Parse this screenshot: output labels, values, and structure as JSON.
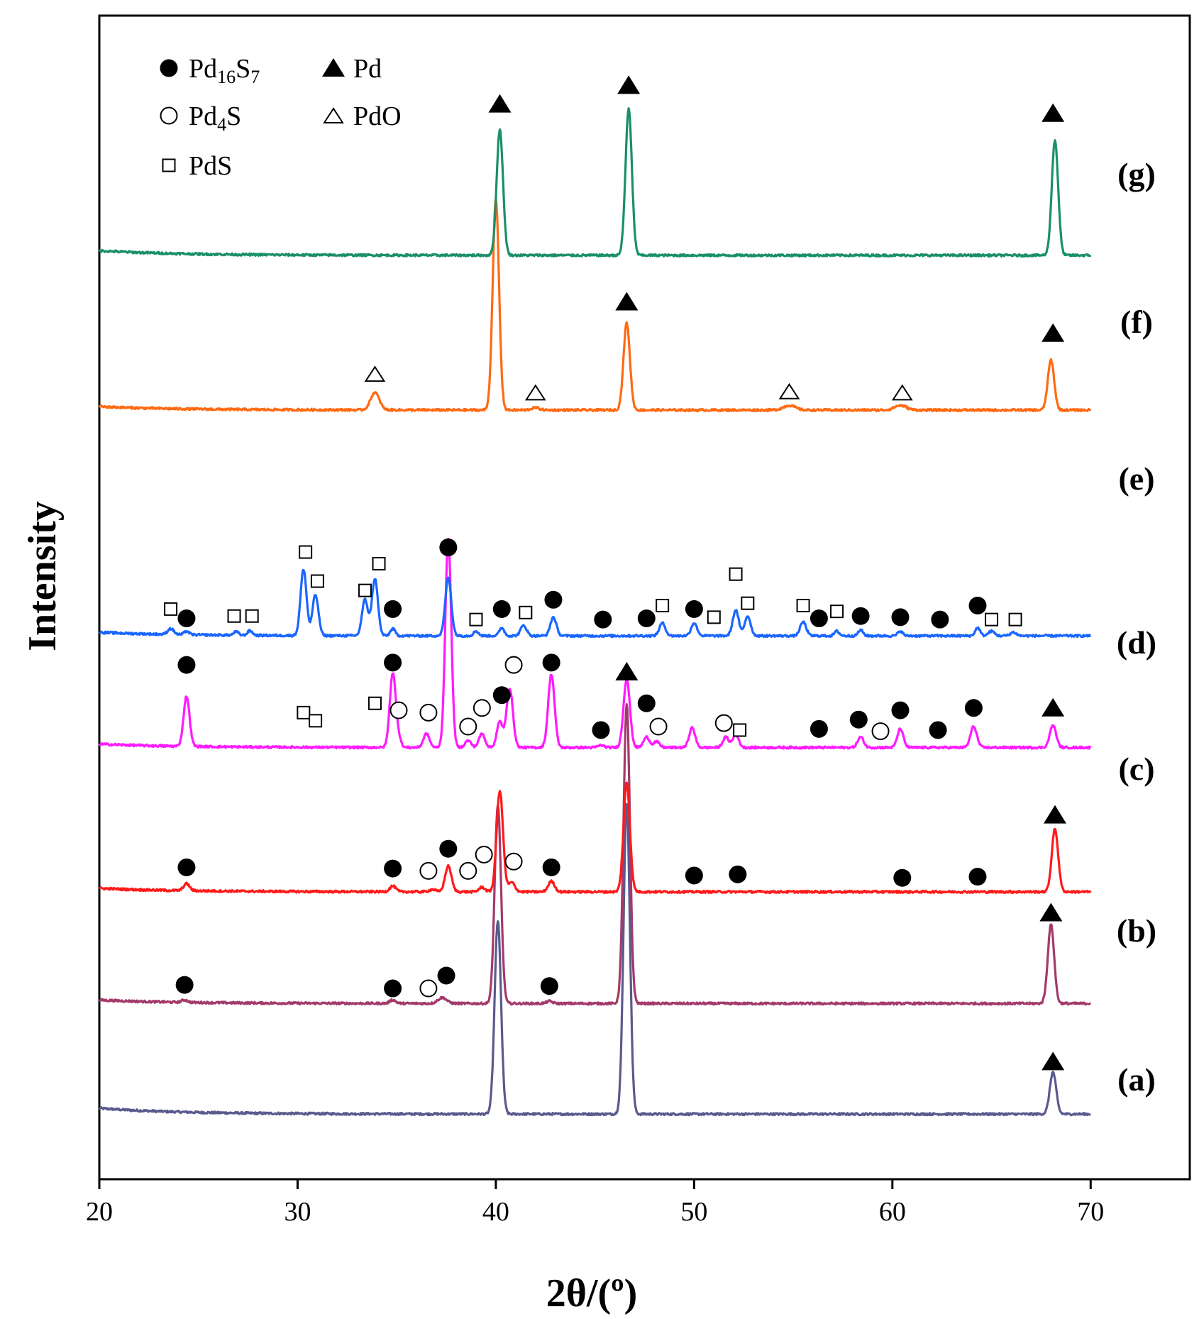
{
  "chart_data": {
    "type": "line",
    "xlabel": "2θ/(º)",
    "ylabel": "Intensity",
    "xlim": [
      20,
      75
    ],
    "xticks": [
      20,
      30,
      40,
      50,
      60,
      70
    ],
    "tick_labels": [
      "20",
      "30",
      "40",
      "50",
      "60",
      "70"
    ],
    "ylim": [
      0,
      100
    ],
    "legend": {
      "placement": "top-left",
      "entries": [
        {
          "symbol": "filled-circle",
          "label": "Pd",
          "sub": "16",
          "label2": "S",
          "sub2": "7",
          "phase": "Pd16S7"
        },
        {
          "symbol": "filled-triangle",
          "label": "Pd",
          "phase": "Pd"
        },
        {
          "symbol": "open-circle",
          "label": "Pd",
          "sub": "4",
          "label2": "S",
          "phase": "Pd4S"
        },
        {
          "symbol": "open-triangle",
          "label": "PdO",
          "phase": "PdO"
        },
        {
          "symbol": "open-square",
          "label": "PdS",
          "phase": "PdS"
        }
      ]
    },
    "series": [
      {
        "name": "(a)",
        "color": "#5a5a8e",
        "baseline": 5.6,
        "start": 6.1,
        "peaks": [
          [
            40.1,
            16.6,
            0.16
          ],
          [
            46.6,
            26.7,
            0.16
          ],
          [
            68.1,
            3.6,
            0.16
          ]
        ],
        "markers": [
          {
            "symbol": "filled-triangle",
            "x": 68.1,
            "y": 10.1
          }
        ]
      },
      {
        "name": "(b)",
        "color": "#a33a6b",
        "baseline": 15.1,
        "start": 15.4,
        "peaks": [
          [
            24.3,
            0.2,
            0.15
          ],
          [
            34.8,
            0.3,
            0.15
          ],
          [
            37.3,
            0.5,
            0.22
          ],
          [
            40.1,
            17.0,
            0.16
          ],
          [
            42.7,
            0.2,
            0.15
          ],
          [
            46.6,
            25.7,
            0.16
          ],
          [
            68.0,
            6.8,
            0.16
          ]
        ],
        "markers": [
          {
            "symbol": "filled-circle",
            "x": 24.3,
            "y": 16.7
          },
          {
            "symbol": "filled-circle",
            "x": 34.8,
            "y": 16.4
          },
          {
            "symbol": "open-circle",
            "x": 36.6,
            "y": 16.4
          },
          {
            "symbol": "filled-circle",
            "x": 37.5,
            "y": 17.5
          },
          {
            "symbol": "filled-circle",
            "x": 42.7,
            "y": 16.6
          },
          {
            "symbol": "filled-triangle",
            "x": 68.0,
            "y": 22.9
          }
        ]
      },
      {
        "name": "(c)",
        "color": "#ff1a1a",
        "baseline": 24.7,
        "start": 25.0,
        "peaks": [
          [
            24.4,
            0.6,
            0.15
          ],
          [
            34.8,
            0.5,
            0.15
          ],
          [
            36.8,
            0.2,
            0.15
          ],
          [
            37.6,
            2.2,
            0.16
          ],
          [
            39.3,
            0.4,
            0.15
          ],
          [
            40.2,
            8.7,
            0.16
          ],
          [
            40.8,
            0.8,
            0.16
          ],
          [
            42.8,
            0.9,
            0.16
          ],
          [
            46.6,
            9.4,
            0.16
          ],
          [
            68.2,
            5.4,
            0.16
          ]
        ],
        "markers": [
          {
            "symbol": "filled-circle",
            "x": 24.4,
            "y": 26.8
          },
          {
            "symbol": "filled-circle",
            "x": 34.8,
            "y": 26.7
          },
          {
            "symbol": "open-circle",
            "x": 36.6,
            "y": 26.5
          },
          {
            "symbol": "filled-circle",
            "x": 37.6,
            "y": 28.4
          },
          {
            "symbol": "open-circle",
            "x": 38.6,
            "y": 26.5
          },
          {
            "symbol": "open-circle",
            "x": 39.4,
            "y": 27.9
          },
          {
            "symbol": "open-circle",
            "x": 40.9,
            "y": 27.3
          },
          {
            "symbol": "filled-circle",
            "x": 42.8,
            "y": 26.8
          },
          {
            "symbol": "filled-circle",
            "x": 50.0,
            "y": 26.1
          },
          {
            "symbol": "filled-circle",
            "x": 52.2,
            "y": 26.2
          },
          {
            "symbol": "filled-circle",
            "x": 60.5,
            "y": 25.9
          },
          {
            "symbol": "filled-circle",
            "x": 64.3,
            "y": 26.0
          },
          {
            "symbol": "filled-triangle",
            "x": 68.2,
            "y": 31.3
          }
        ]
      },
      {
        "name": "(d)",
        "color": "#ff1aff",
        "baseline": 37.1,
        "start": 37.4,
        "peaks": [
          [
            24.4,
            4.3,
            0.15
          ],
          [
            34.8,
            6.4,
            0.15
          ],
          [
            35.1,
            0.7,
            0.12
          ],
          [
            36.5,
            1.2,
            0.15
          ],
          [
            37.6,
            18.0,
            0.15
          ],
          [
            38.6,
            0.6,
            0.15
          ],
          [
            39.3,
            1.2,
            0.15
          ],
          [
            40.2,
            2.2,
            0.15
          ],
          [
            40.7,
            5.1,
            0.16
          ],
          [
            42.8,
            6.3,
            0.16
          ],
          [
            45.3,
            0.2,
            0.15
          ],
          [
            46.6,
            5.9,
            0.16
          ],
          [
            47.6,
            0.9,
            0.15
          ],
          [
            48.1,
            0.5,
            0.15
          ],
          [
            49.9,
            1.7,
            0.15
          ],
          [
            51.6,
            0.9,
            0.15
          ],
          [
            52.1,
            1.1,
            0.15
          ],
          [
            58.4,
            0.9,
            0.15
          ],
          [
            60.4,
            1.6,
            0.15
          ],
          [
            64.1,
            1.8,
            0.16
          ],
          [
            68.1,
            1.9,
            0.16
          ]
        ],
        "markers": [
          {
            "symbol": "filled-circle",
            "x": 24.4,
            "y": 44.2
          },
          {
            "symbol": "filled-circle",
            "x": 34.8,
            "y": 44.4
          },
          {
            "symbol": "open-circle",
            "x": 35.1,
            "y": 40.3
          },
          {
            "symbol": "open-circle",
            "x": 36.6,
            "y": 40.1
          },
          {
            "symbol": "open-circle",
            "x": 38.6,
            "y": 38.9
          },
          {
            "symbol": "open-circle",
            "x": 39.3,
            "y": 40.5
          },
          {
            "symbol": "filled-circle",
            "x": 40.3,
            "y": 41.6
          },
          {
            "symbol": "open-circle",
            "x": 40.9,
            "y": 44.2
          },
          {
            "symbol": "filled-circle",
            "x": 42.8,
            "y": 44.4
          },
          {
            "symbol": "filled-circle",
            "x": 45.3,
            "y": 38.6
          },
          {
            "symbol": "filled-triangle",
            "x": 46.6,
            "y": 43.6
          },
          {
            "symbol": "filled-circle",
            "x": 47.6,
            "y": 40.9
          },
          {
            "symbol": "open-circle",
            "x": 48.2,
            "y": 38.9
          },
          {
            "symbol": "open-circle",
            "x": 51.5,
            "y": 39.2
          },
          {
            "symbol": "filled-circle",
            "x": 56.3,
            "y": 38.7
          },
          {
            "symbol": "filled-circle",
            "x": 58.3,
            "y": 39.5
          },
          {
            "symbol": "open-circle",
            "x": 59.4,
            "y": 38.5
          },
          {
            "symbol": "filled-circle",
            "x": 60.4,
            "y": 40.3
          },
          {
            "symbol": "filled-circle",
            "x": 62.3,
            "y": 38.6
          },
          {
            "symbol": "filled-circle",
            "x": 64.1,
            "y": 40.5
          },
          {
            "symbol": "filled-triangle",
            "x": 68.1,
            "y": 40.5
          }
        ],
        "pds_markers": [
          30.3,
          30.9,
          33.9,
          52.3
        ]
      },
      {
        "name": "(e)",
        "color": "#1a66ff",
        "baseline": 46.7,
        "start": 47.0,
        "peaks": [
          [
            23.6,
            0.5,
            0.15
          ],
          [
            24.4,
            0.3,
            0.12
          ],
          [
            26.9,
            0.3,
            0.12
          ],
          [
            27.6,
            0.4,
            0.12
          ],
          [
            30.3,
            5.7,
            0.15
          ],
          [
            30.9,
            3.5,
            0.15
          ],
          [
            33.4,
            3.1,
            0.15
          ],
          [
            33.9,
            4.9,
            0.15
          ],
          [
            34.8,
            0.6,
            0.12
          ],
          [
            37.6,
            5.0,
            0.15
          ],
          [
            39.0,
            0.4,
            0.12
          ],
          [
            40.3,
            0.7,
            0.12
          ],
          [
            41.4,
            0.9,
            0.15
          ],
          [
            42.9,
            1.6,
            0.15
          ],
          [
            48.4,
            1.1,
            0.15
          ],
          [
            50.0,
            1.1,
            0.15
          ],
          [
            52.1,
            2.2,
            0.15
          ],
          [
            52.7,
            1.7,
            0.15
          ],
          [
            55.5,
            1.2,
            0.15
          ],
          [
            57.2,
            0.4,
            0.12
          ],
          [
            58.4,
            0.5,
            0.12
          ],
          [
            60.4,
            0.4,
            0.12
          ],
          [
            64.3,
            0.7,
            0.12
          ],
          [
            65.0,
            0.4,
            0.15
          ],
          [
            66.1,
            0.3,
            0.15
          ]
        ],
        "markers": [
          {
            "symbol": "filled-circle",
            "x": 24.4,
            "y": 48.2
          },
          {
            "symbol": "filled-circle",
            "x": 34.8,
            "y": 49.0
          },
          {
            "symbol": "filled-circle",
            "x": 37.6,
            "y": 54.3
          },
          {
            "symbol": "filled-circle",
            "x": 40.3,
            "y": 49.0
          },
          {
            "symbol": "filled-circle",
            "x": 42.9,
            "y": 49.8
          },
          {
            "symbol": "filled-circle",
            "x": 45.4,
            "y": 48.1
          },
          {
            "symbol": "filled-circle",
            "x": 47.6,
            "y": 48.2
          },
          {
            "symbol": "filled-circle",
            "x": 50.0,
            "y": 49.0
          },
          {
            "symbol": "filled-circle",
            "x": 56.3,
            "y": 48.2
          },
          {
            "symbol": "filled-circle",
            "x": 58.4,
            "y": 48.4
          },
          {
            "symbol": "filled-circle",
            "x": 60.4,
            "y": 48.3
          },
          {
            "symbol": "filled-circle",
            "x": 62.4,
            "y": 48.1
          },
          {
            "symbol": "filled-circle",
            "x": 64.3,
            "y": 49.3
          }
        ],
        "pds_markers": [
          23.6,
          26.8,
          27.7,
          30.4,
          31.0,
          33.4,
          34.1,
          39.0,
          41.5,
          48.4,
          51.0,
          52.1,
          52.7,
          55.5,
          57.2,
          65.0,
          66.2
        ]
      },
      {
        "name": "(f)",
        "color": "#ff6a13",
        "baseline": 66.1,
        "start": 66.4,
        "peaks": [
          [
            33.9,
            1.5,
            0.22
          ],
          [
            40.0,
            18.1,
            0.16
          ],
          [
            42.0,
            0.2,
            0.2
          ],
          [
            46.6,
            7.5,
            0.16
          ],
          [
            54.8,
            0.4,
            0.3
          ],
          [
            60.4,
            0.4,
            0.3
          ],
          [
            68.0,
            4.3,
            0.16
          ]
        ],
        "markers": [
          {
            "symbol": "open-triangle",
            "x": 33.9,
            "y": 69.2
          },
          {
            "symbol": "open-triangle",
            "x": 42.0,
            "y": 67.6
          },
          {
            "symbol": "filled-triangle",
            "x": 46.6,
            "y": 75.4
          },
          {
            "symbol": "open-triangle",
            "x": 54.8,
            "y": 67.7
          },
          {
            "symbol": "open-triangle",
            "x": 60.5,
            "y": 67.6
          },
          {
            "symbol": "filled-triangle",
            "x": 68.1,
            "y": 72.7
          }
        ]
      },
      {
        "name": "(g)",
        "color": "#1a8f6b",
        "baseline": 79.4,
        "start": 79.8,
        "peaks": [
          [
            40.2,
            10.8,
            0.16
          ],
          [
            46.7,
            12.6,
            0.16
          ],
          [
            68.2,
            9.9,
            0.16
          ]
        ],
        "markers": [
          {
            "symbol": "filled-triangle",
            "x": 40.2,
            "y": 92.4
          },
          {
            "symbol": "filled-triangle",
            "x": 46.7,
            "y": 94.0
          },
          {
            "symbol": "filled-triangle",
            "x": 68.1,
            "y": 91.6
          }
        ]
      }
    ]
  }
}
